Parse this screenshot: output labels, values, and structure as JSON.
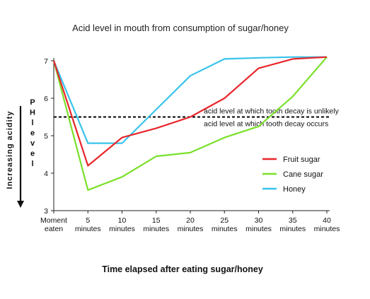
{
  "chart_data": {
    "type": "line",
    "title": "Acid level in mouth from consumption of sugar/honey",
    "xlabel": "Time elapsed after eating sugar/honey",
    "ylabel": "Increasing acidity",
    "ylabel_secondary": "PH level",
    "x_categories": [
      [
        "Moment",
        "eaten"
      ],
      [
        "5",
        "minutes"
      ],
      [
        "10",
        "minutes"
      ],
      [
        "15",
        "minutes"
      ],
      [
        "20",
        "minutes"
      ],
      [
        "25",
        "minutes"
      ],
      [
        "30",
        "minutes"
      ],
      [
        "35",
        "minutes"
      ],
      [
        "40",
        "minutes"
      ]
    ],
    "y_ticks": [
      3,
      4,
      5,
      6,
      7
    ],
    "ylim": [
      3,
      7
    ],
    "threshold": {
      "value": 5.5,
      "label_above": "acid level at which tooth decay is unlikely",
      "label_below": "acid level at which tooth decay occurs"
    },
    "legend_position": "right",
    "series": [
      {
        "name": "Fruit sugar",
        "color": "#e8262b",
        "values": [
          7.0,
          4.2,
          4.95,
          5.2,
          5.5,
          6.0,
          6.8,
          7.05,
          7.1
        ]
      },
      {
        "name": "Cane sugar",
        "color": "#7ae02a",
        "values": [
          7.0,
          3.55,
          3.9,
          4.45,
          4.55,
          4.95,
          5.25,
          6.05,
          7.1
        ]
      },
      {
        "name": "Honey",
        "color": "#38c4ea",
        "values": [
          7.0,
          4.8,
          4.8,
          5.7,
          6.6,
          7.05,
          7.08,
          7.1,
          7.1
        ]
      }
    ]
  }
}
